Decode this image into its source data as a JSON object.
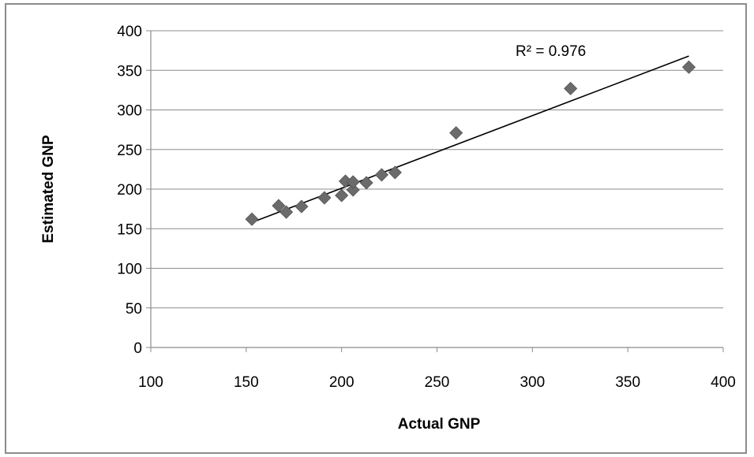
{
  "chart_data": {
    "type": "scatter",
    "title": "",
    "xlabel": "Actual GNP",
    "ylabel": "Estimated GNP",
    "xlim": [
      100,
      400
    ],
    "ylim": [
      0,
      400
    ],
    "xticks": [
      100,
      150,
      200,
      250,
      300,
      350,
      400
    ],
    "yticks": [
      0,
      50,
      100,
      150,
      200,
      250,
      300,
      350,
      400
    ],
    "grid": "horizontal",
    "legend": "none",
    "marker_color": "#6b6b6b",
    "trendline": {
      "type": "linear",
      "from": [
        153,
        158
      ],
      "to": [
        382,
        368
      ],
      "label": "R² = 0.976"
    },
    "points": [
      {
        "x": 153,
        "y": 162
      },
      {
        "x": 167,
        "y": 179
      },
      {
        "x": 171,
        "y": 171
      },
      {
        "x": 179,
        "y": 178
      },
      {
        "x": 191,
        "y": 189
      },
      {
        "x": 200,
        "y": 192
      },
      {
        "x": 202,
        "y": 210
      },
      {
        "x": 206,
        "y": 199
      },
      {
        "x": 206,
        "y": 209
      },
      {
        "x": 213,
        "y": 208
      },
      {
        "x": 221,
        "y": 218
      },
      {
        "x": 228,
        "y": 221
      },
      {
        "x": 260,
        "y": 271
      },
      {
        "x": 320,
        "y": 327
      },
      {
        "x": 382,
        "y": 354
      }
    ]
  }
}
